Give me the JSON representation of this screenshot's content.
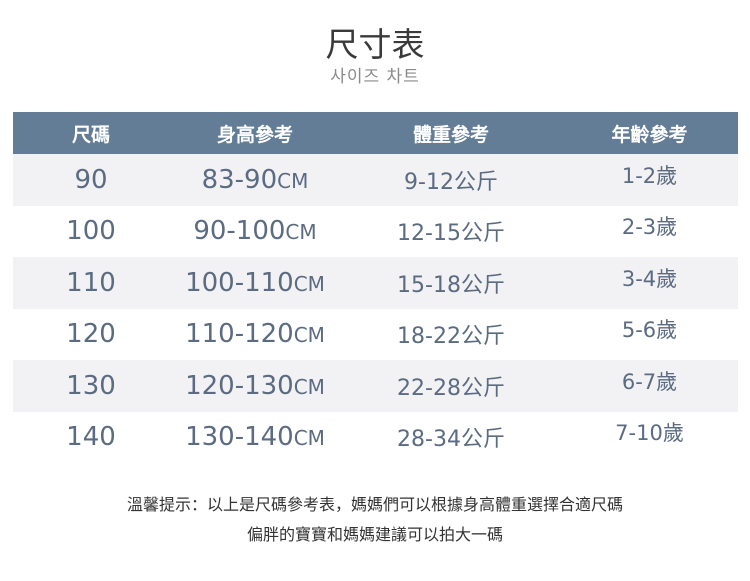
{
  "title": "尺寸表",
  "subtitle": "사이즈 차트",
  "colors": {
    "header_bg": "#637d97",
    "row_alt_bg": "#f2f1f4",
    "text": "#5b6b82"
  },
  "table": {
    "headers": [
      "尺碼",
      "身高參考",
      "體重參考",
      "年齡參考"
    ],
    "rows": [
      {
        "size": "90",
        "height": "83-90",
        "height_unit": "CM",
        "weight": "9-12公斤",
        "age": "1-2歲"
      },
      {
        "size": "100",
        "height": "90-100",
        "height_unit": "CM",
        "weight": "12-15公斤",
        "age": "2-3歲"
      },
      {
        "size": "110",
        "height": "100-110",
        "height_unit": "CM",
        "weight": "15-18公斤",
        "age": "3-4歲"
      },
      {
        "size": "120",
        "height": "110-120",
        "height_unit": "CM",
        "weight": "18-22公斤",
        "age": "5-6歲"
      },
      {
        "size": "130",
        "height": "120-130",
        "height_unit": "CM",
        "weight": "22-28公斤",
        "age": "6-7歲"
      },
      {
        "size": "140",
        "height": "130-140",
        "height_unit": "CM",
        "weight": "28-34公斤",
        "age": "7-10歲"
      }
    ]
  },
  "notes": [
    "溫馨提示：以上是尺碼參考表，媽媽們可以根據身高體重選擇合適尺碼",
    "偏胖的寶寶和媽媽建議可以拍大一碼"
  ]
}
